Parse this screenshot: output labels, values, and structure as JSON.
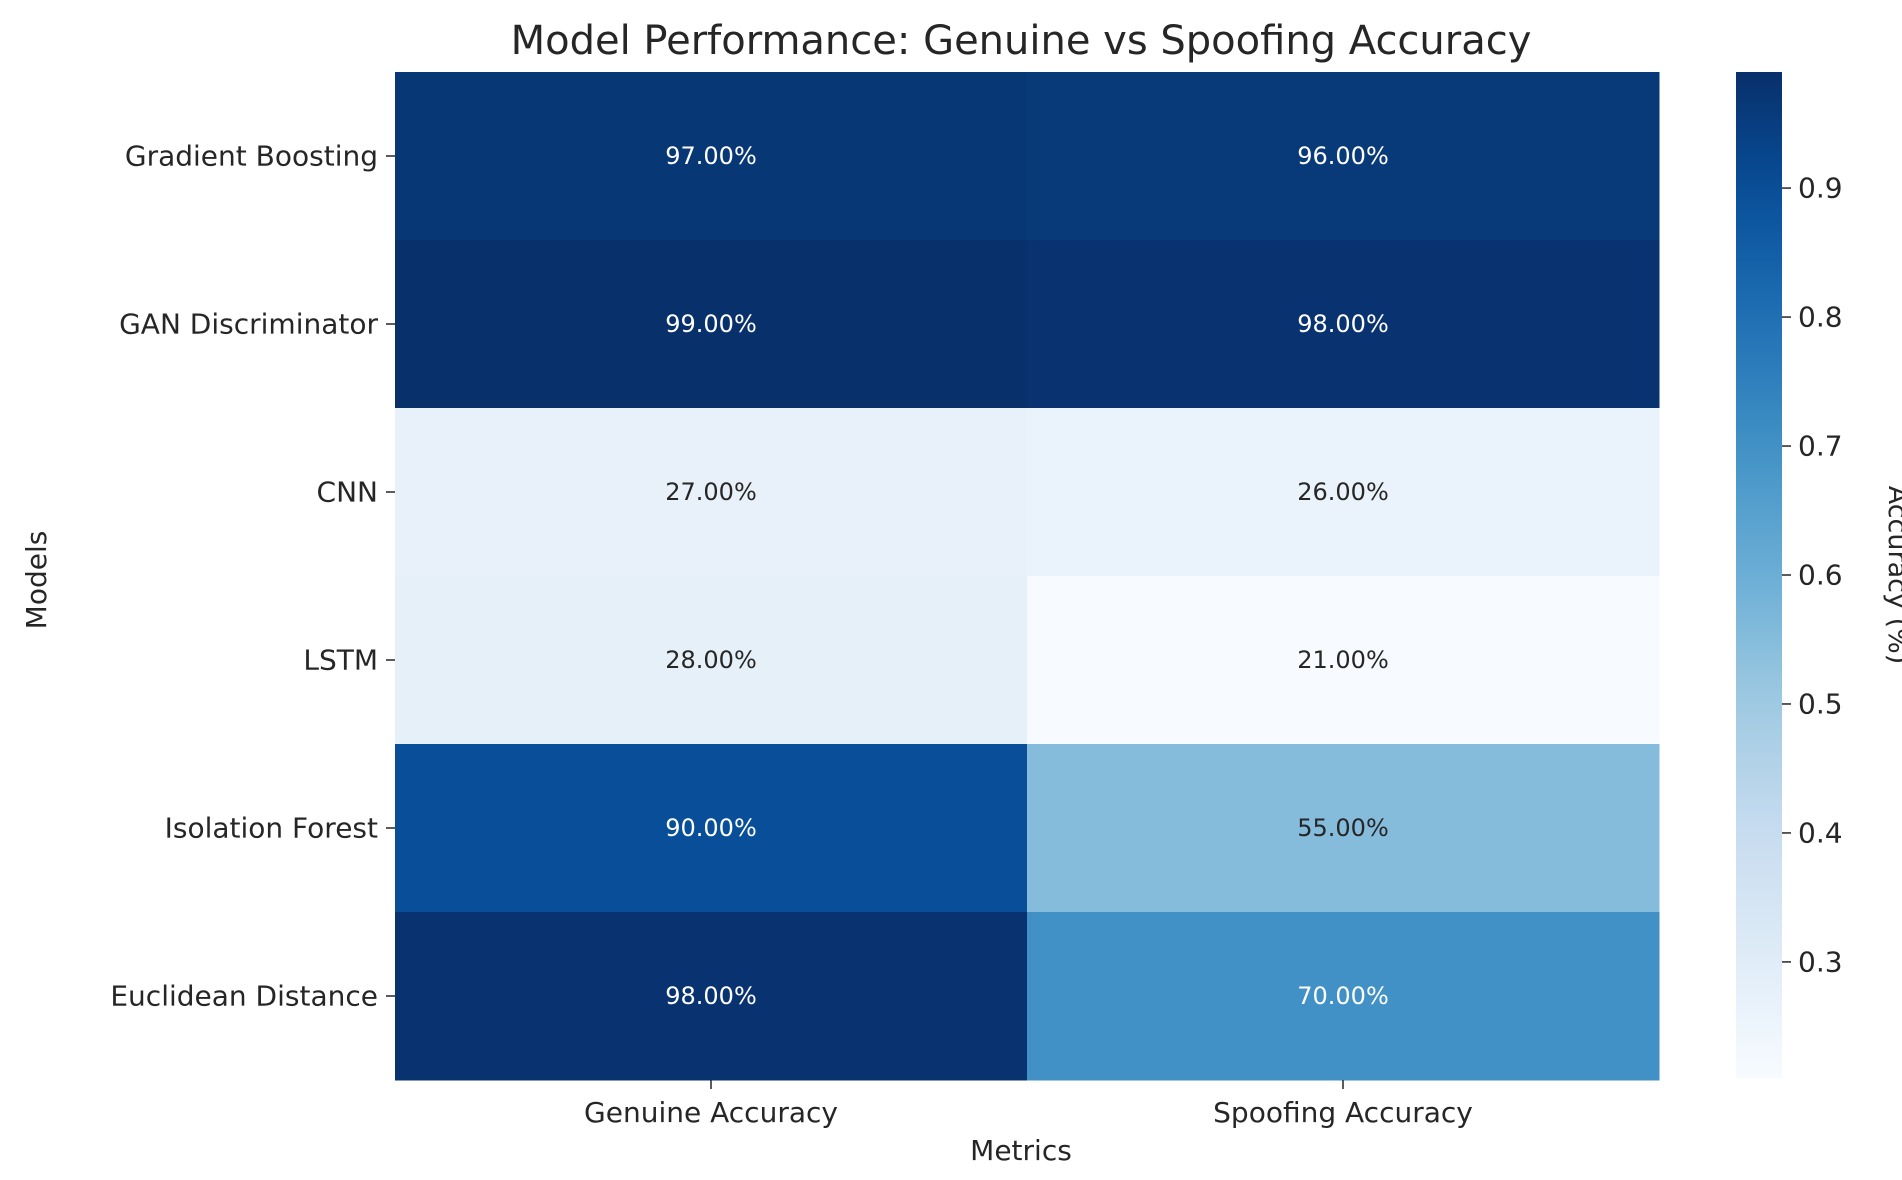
{
  "chart_data": {
    "type": "heatmap",
    "title": "Model Performance: Genuine vs Spoofing Accuracy",
    "xlabel": "Metrics",
    "ylabel": "Models",
    "x_categories": [
      "Genuine Accuracy",
      "Spoofing Accuracy"
    ],
    "y_categories": [
      "Gradient Boosting",
      "GAN Discriminator",
      "CNN",
      "LSTM",
      "Isolation Forest",
      "Euclidean Distance"
    ],
    "values": [
      [
        0.97,
        0.96
      ],
      [
        0.99,
        0.98
      ],
      [
        0.27,
        0.26
      ],
      [
        0.28,
        0.21
      ],
      [
        0.9,
        0.55
      ],
      [
        0.98,
        0.7
      ]
    ],
    "cell_labels": [
      [
        "97.00%",
        "96.00%"
      ],
      [
        "99.00%",
        "98.00%"
      ],
      [
        "27.00%",
        "26.00%"
      ],
      [
        "28.00%",
        "21.00%"
      ],
      [
        "90.00%",
        "55.00%"
      ],
      [
        "98.00%",
        "70.00%"
      ]
    ],
    "colormap": "Blues",
    "colorbar": {
      "label": "Accuracy (%)",
      "range": [
        0.21,
        0.99
      ],
      "ticks": [
        0.3,
        0.4,
        0.5,
        0.6,
        0.7,
        0.8,
        0.9
      ],
      "tick_labels": [
        "0.3",
        "0.4",
        "0.5",
        "0.6",
        "0.7",
        "0.8",
        "0.9"
      ]
    },
    "grid": false
  }
}
